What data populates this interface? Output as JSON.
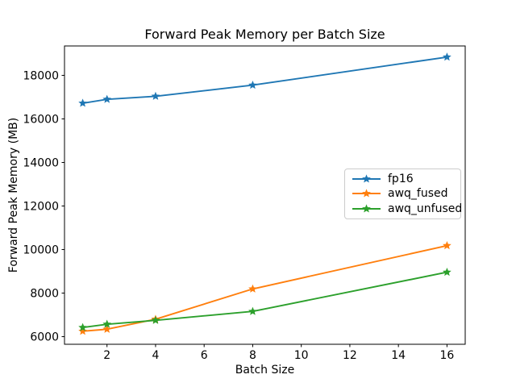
{
  "figure": {
    "background": "#ffffff",
    "axes_edge_color": "#000000",
    "tick_color": "#000000"
  },
  "chart_data": {
    "type": "line",
    "title": "Forward Peak Memory per Batch Size",
    "xlabel": "Batch Size",
    "ylabel": "Forward Peak Memory (MB)",
    "x": [
      1,
      2,
      4,
      8,
      16
    ],
    "series": [
      {
        "name": "fp16",
        "color": "#1f77b4",
        "marker": "star",
        "values": [
          16720,
          16900,
          17040,
          17550,
          18840
        ]
      },
      {
        "name": "awq_fused",
        "color": "#ff7f0e",
        "marker": "star",
        "values": [
          6250,
          6340,
          6800,
          8190,
          10180
        ]
      },
      {
        "name": "awq_unfused",
        "color": "#2ca02c",
        "marker": "star",
        "values": [
          6420,
          6570,
          6750,
          7160,
          8960
        ]
      }
    ],
    "xlim": [
      0.25,
      16.75
    ],
    "ylim": [
      5650,
      19350
    ],
    "xticks": [
      2,
      4,
      6,
      8,
      10,
      12,
      14,
      16
    ],
    "yticks": [
      6000,
      8000,
      10000,
      12000,
      14000,
      16000,
      18000
    ],
    "grid": false,
    "legend_position": "center right"
  }
}
